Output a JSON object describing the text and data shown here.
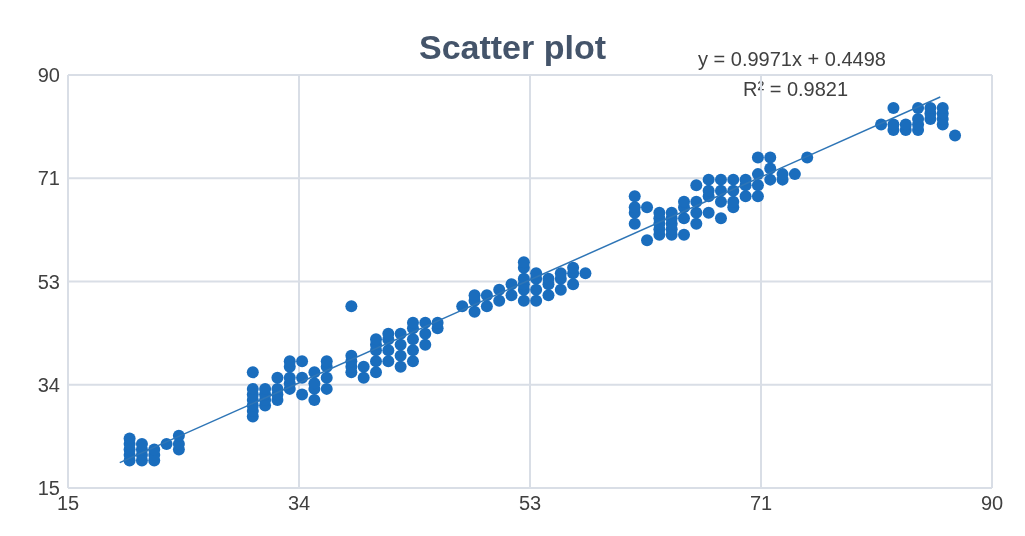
{
  "chart_data": {
    "type": "scatter",
    "title": "Scatter plot",
    "annotations": [
      "y = 0.9971x + 0.4498",
      "R² = 0.9821"
    ],
    "xlim": [
      15,
      90
    ],
    "xticks": [
      15,
      {
        "value": 33.75,
        "label": "34"
      },
      {
        "value": 52.5,
        "label": "53"
      },
      {
        "value": 71.25,
        "label": "71"
      },
      90
    ],
    "ylim": [
      15,
      90
    ],
    "yticks": [
      15,
      {
        "value": 33.75,
        "label": "34"
      },
      {
        "value": 52.5,
        "label": "53"
      },
      {
        "value": 71.25,
        "label": "71"
      },
      90
    ],
    "grid": true,
    "series": [
      {
        "marker": "circle",
        "color": "#1a6dbd",
        "x": [
          20,
          20,
          20,
          20,
          20,
          21,
          21,
          21,
          21,
          22,
          22,
          22,
          23,
          24,
          24,
          24,
          30,
          30,
          30,
          30,
          30,
          30,
          30,
          31,
          31,
          31,
          31,
          32,
          32,
          32,
          32,
          33,
          33,
          33,
          33,
          33,
          34,
          34,
          34,
          35,
          35,
          35,
          35,
          36,
          36,
          36,
          36,
          38,
          38,
          38,
          38,
          38,
          39,
          39,
          40,
          40,
          40,
          40,
          40,
          41,
          41,
          41,
          41,
          42,
          42,
          42,
          42,
          43,
          43,
          43,
          43,
          43,
          44,
          44,
          44,
          45,
          45,
          47,
          48,
          48,
          48,
          49,
          49,
          50,
          50,
          51,
          51,
          52,
          52,
          52,
          52,
          52,
          52,
          53,
          53,
          53,
          53,
          54,
          54,
          54,
          55,
          55,
          55,
          56,
          56,
          56,
          57,
          61,
          61,
          61,
          61,
          62,
          62,
          63,
          63,
          63,
          63,
          63,
          64,
          64,
          64,
          64,
          64,
          65,
          65,
          65,
          65,
          66,
          66,
          66,
          66,
          67,
          67,
          67,
          67,
          68,
          68,
          68,
          68,
          69,
          69,
          69,
          69,
          70,
          70,
          70,
          71,
          71,
          71,
          71,
          72,
          72,
          72,
          73,
          73,
          74,
          75,
          81,
          82,
          82,
          82,
          83,
          83,
          84,
          84,
          84,
          84,
          85,
          85,
          85,
          86,
          86,
          86,
          86,
          87
        ],
        "values": [
          20,
          21,
          22,
          23,
          24,
          20,
          21,
          22,
          23,
          20,
          21,
          22,
          23,
          22,
          23,
          24.5,
          28,
          29,
          30,
          31,
          32,
          33,
          36,
          30,
          31,
          32,
          33,
          31,
          32,
          33,
          35,
          33,
          34,
          35,
          37,
          38,
          32,
          35,
          38,
          31,
          33,
          34,
          36,
          33,
          35,
          37,
          38,
          36,
          37,
          48,
          38,
          39,
          35,
          37,
          36,
          38,
          40,
          41,
          42,
          38,
          40,
          42,
          43,
          37,
          39,
          41,
          43,
          38,
          40,
          42,
          44,
          45,
          41,
          43,
          45,
          44,
          45,
          48,
          47,
          49,
          50,
          48,
          50,
          49,
          51,
          50,
          52,
          49,
          51,
          52,
          53,
          55,
          56,
          49,
          51,
          53,
          54,
          50,
          52,
          53,
          51,
          53,
          54,
          52,
          54,
          55,
          54,
          63,
          65,
          66,
          68,
          60,
          66,
          61,
          62,
          63,
          64,
          65,
          61,
          62,
          63,
          64,
          65,
          61,
          64,
          66,
          67,
          63,
          65,
          67,
          70,
          65,
          68,
          69,
          71,
          64,
          67,
          69,
          71,
          66,
          67,
          69,
          71,
          68,
          70,
          71,
          68,
          70,
          72,
          75,
          71,
          73,
          75,
          71,
          72,
          72,
          75,
          81,
          80,
          81,
          84,
          80,
          81,
          80,
          81,
          82,
          84,
          82,
          83,
          84,
          81,
          82,
          83,
          84,
          79
        ]
      },
      {
        "type": "line",
        "marker": "none",
        "color": "#2e75b6",
        "x": [
          19.2,
          85.8
        ],
        "values": [
          19.6,
          86.0
        ]
      }
    ]
  }
}
